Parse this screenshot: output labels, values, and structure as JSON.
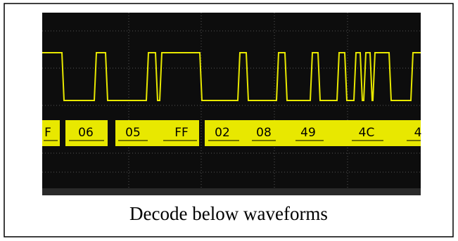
{
  "decode_labels": [
    "F",
    "06",
    "05",
    "FF",
    "02",
    "08",
    "49",
    "4C",
    "4"
  ],
  "caption": "Decode below waveforms"
}
